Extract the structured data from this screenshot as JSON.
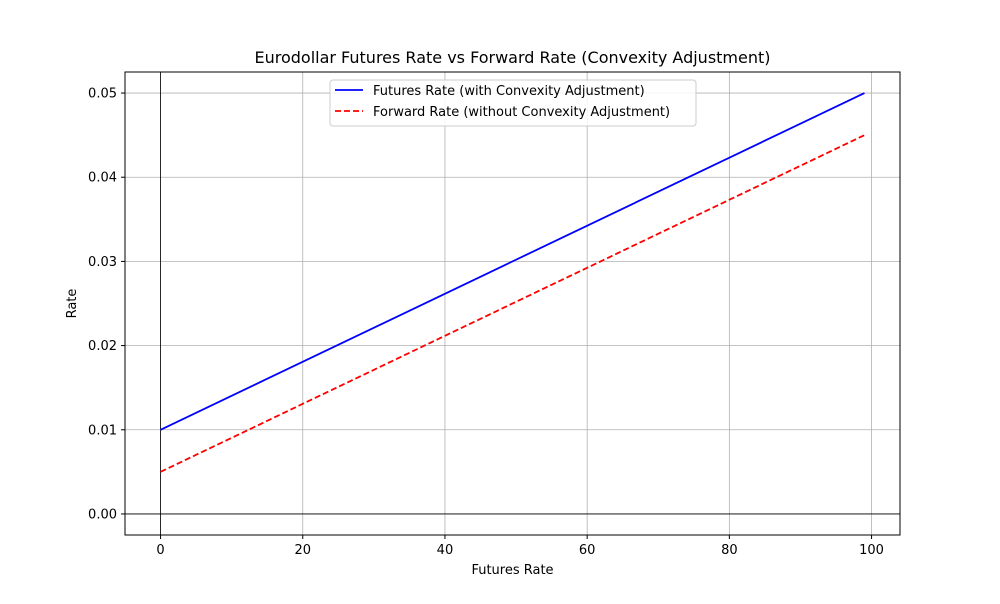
{
  "chart_data": {
    "type": "line",
    "title": "Eurodollar Futures Rate vs Forward Rate (Convexity Adjustment)",
    "xlabel": "Futures Rate",
    "ylabel": "Rate",
    "xlim": [
      -5,
      104
    ],
    "ylim": [
      -0.0025,
      0.0525
    ],
    "x_ticks": [
      0,
      20,
      40,
      60,
      80,
      100
    ],
    "x_tick_labels": [
      "0",
      "20",
      "40",
      "60",
      "80",
      "100"
    ],
    "y_ticks": [
      0.0,
      0.01,
      0.02,
      0.03,
      0.04,
      0.05
    ],
    "y_tick_labels": [
      "0.00",
      "0.01",
      "0.02",
      "0.03",
      "0.04",
      "0.05"
    ],
    "grid": true,
    "reference_lines": {
      "x": 0,
      "y": 0
    },
    "legend_position": "top-center",
    "series": [
      {
        "name": "Futures Rate (with Convexity Adjustment)",
        "color": "#0000ff",
        "style": "solid",
        "x": [
          0,
          99
        ],
        "y": [
          0.01,
          0.05
        ]
      },
      {
        "name": "Forward Rate (without Convexity Adjustment)",
        "color": "#ff0000",
        "style": "dashed",
        "x": [
          0,
          99
        ],
        "y": [
          0.005,
          0.045
        ]
      }
    ]
  }
}
